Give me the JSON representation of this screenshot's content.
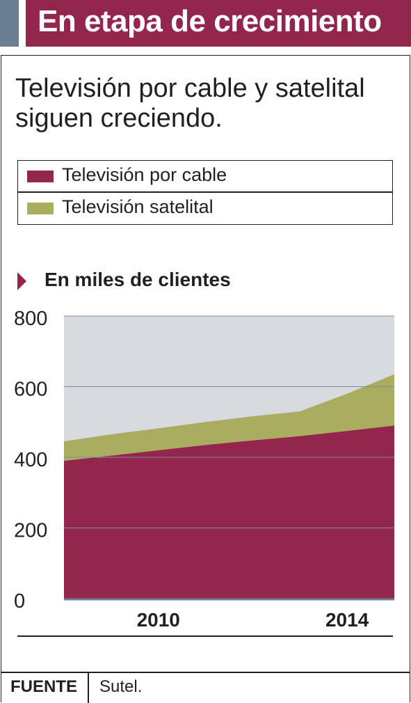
{
  "header": {
    "title": "En etapa de crecimiento"
  },
  "subtitle_lines": [
    "Televisión por cable y satelital",
    "siguen creciendo."
  ],
  "legend": [
    {
      "label": "Televisión por cable",
      "color": "#93264d"
    },
    {
      "label": "Televisión satelital",
      "color": "#aaac5f"
    }
  ],
  "unit_label": "En miles de clientes",
  "chart_data": {
    "type": "area",
    "stacked": true,
    "x": [
      2008,
      2009,
      2010,
      2011,
      2012,
      2013,
      2014,
      2015
    ],
    "x_tick_labels": [
      "2010",
      "2014"
    ],
    "y_ticks": [
      0,
      200,
      400,
      600,
      800
    ],
    "ylim": [
      0,
      800
    ],
    "grid": true,
    "plot_background": "#d7dadf",
    "series": [
      {
        "name": "Televisión por cable",
        "color": "#93264d",
        "values": [
          390,
          405,
          420,
          435,
          448,
          460,
          475,
          490
        ]
      },
      {
        "name": "Televisión satelital",
        "color": "#aaac5f",
        "values": [
          55,
          60,
          62,
          65,
          68,
          70,
          105,
          145
        ]
      }
    ]
  },
  "source": {
    "key": "FUENTE",
    "value": "Sutel."
  }
}
